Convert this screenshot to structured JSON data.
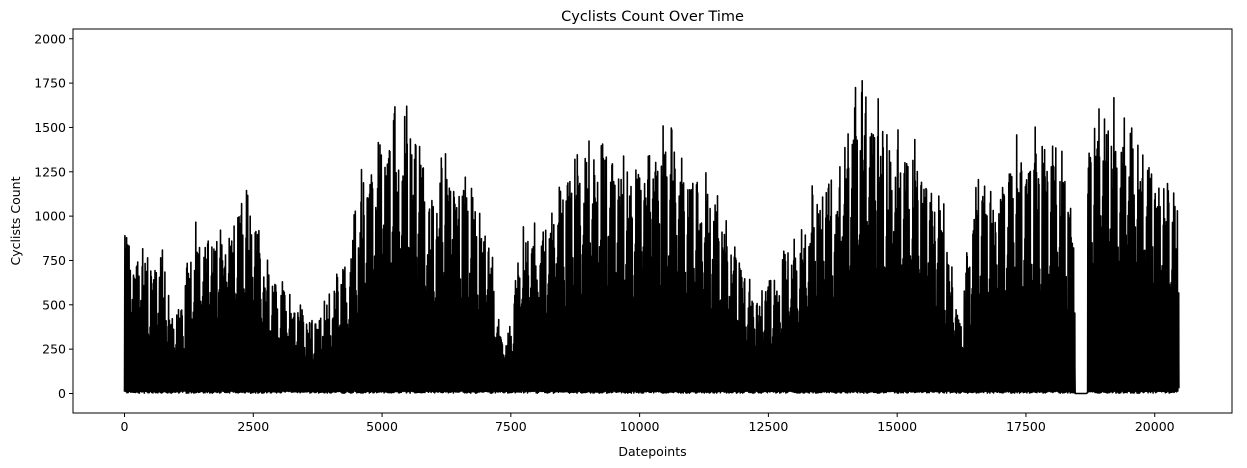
{
  "chart_data": {
    "type": "line",
    "title": "Cyclists Count Over Time",
    "xlabel": "Datepoints",
    "ylabel": "Cyclists Count",
    "xlim": [
      -1000,
      21500
    ],
    "ylim": [
      -110,
      2055
    ],
    "xticks": [
      0,
      2500,
      5000,
      7500,
      10000,
      12500,
      15000,
      17500,
      20000
    ],
    "xtick_labels": [
      "0",
      "2500",
      "5000",
      "7500",
      "10000",
      "12500",
      "15000",
      "17500",
      "20000"
    ],
    "yticks": [
      0,
      250,
      500,
      750,
      1000,
      1250,
      1500,
      1750,
      2000
    ],
    "ytick_labels": [
      "0",
      "250",
      "500",
      "750",
      "1000",
      "1250",
      "1500",
      "1750",
      "2000"
    ],
    "grid": false,
    "line_color": "#000000",
    "series": [
      {
        "name": "",
        "x_start": 0,
        "x_step": 24,
        "peak_envelope": [
          [
            0,
            950
          ],
          [
            300,
            900
          ],
          [
            500,
            800
          ],
          [
            700,
            880
          ],
          [
            900,
            470
          ],
          [
            1100,
            580
          ],
          [
            1300,
            1020
          ],
          [
            1500,
            950
          ],
          [
            1800,
            1000
          ],
          [
            2100,
            1050
          ],
          [
            2300,
            1180
          ],
          [
            2500,
            1250
          ],
          [
            2700,
            830
          ],
          [
            2900,
            720
          ],
          [
            3100,
            640
          ],
          [
            3400,
            520
          ],
          [
            3700,
            450
          ],
          [
            4000,
            620
          ],
          [
            4300,
            820
          ],
          [
            4600,
            1300
          ],
          [
            4900,
            1450
          ],
          [
            5100,
            1780
          ],
          [
            5400,
            1680
          ],
          [
            5700,
            1600
          ],
          [
            5900,
            1130
          ],
          [
            6200,
            1500
          ],
          [
            6600,
            1360
          ],
          [
            6900,
            1180
          ],
          [
            7100,
            950
          ],
          [
            7250,
            420
          ],
          [
            7500,
            380
          ],
          [
            7700,
            1030
          ],
          [
            8000,
            1000
          ],
          [
            8300,
            1150
          ],
          [
            8600,
            1300
          ],
          [
            8900,
            1480
          ],
          [
            9200,
            1470
          ],
          [
            9600,
            1400
          ],
          [
            9900,
            1400
          ],
          [
            10200,
            1600
          ],
          [
            10600,
            1580
          ],
          [
            11000,
            1360
          ],
          [
            11400,
            1230
          ],
          [
            11800,
            930
          ],
          [
            12000,
            750
          ],
          [
            12300,
            570
          ],
          [
            12600,
            750
          ],
          [
            13000,
            980
          ],
          [
            13400,
            1230
          ],
          [
            13800,
            1300
          ],
          [
            14100,
            1880
          ],
          [
            14400,
            1800
          ],
          [
            14800,
            1610
          ],
          [
            15200,
            1570
          ],
          [
            15600,
            1380
          ],
          [
            15900,
            1100
          ],
          [
            16200,
            450
          ],
          [
            16500,
            1280
          ],
          [
            16900,
            1180
          ],
          [
            17200,
            1530
          ],
          [
            17600,
            1530
          ],
          [
            18000,
            1560
          ],
          [
            18300,
            1300
          ],
          [
            18450,
            850
          ],
          [
            18700,
            1720
          ],
          [
            19100,
            1820
          ],
          [
            19500,
            1650
          ],
          [
            19800,
            1500
          ],
          [
            20200,
            1300
          ],
          [
            20450,
            1100
          ]
        ],
        "gap": [
          18450,
          18680
        ]
      }
    ]
  }
}
